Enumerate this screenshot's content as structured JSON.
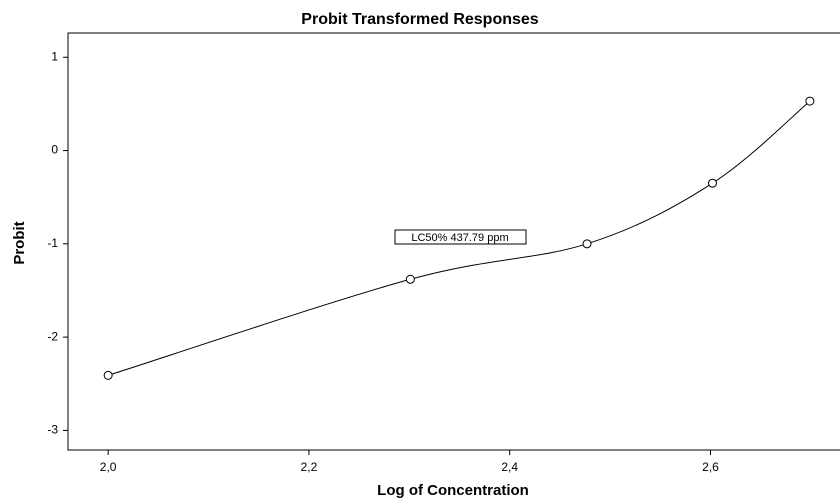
{
  "chart_data": {
    "type": "line",
    "title": "Probit Transformed Responses",
    "xlabel": "Log of Concentration",
    "ylabel": "Probit",
    "annotation": "LC50% 437.79 ppm",
    "x": [
      2.0,
      2.301,
      2.477,
      2.602,
      2.699
    ],
    "series": [
      {
        "color": "#000000",
        "values": [
          -2.41,
          -1.38,
          -1.0,
          -0.35,
          0.53
        ]
      }
    ],
    "xlim": [
      1.96,
      2.73
    ],
    "ylim": [
      -3.21,
      1.26
    ],
    "xticks": [
      {
        "value": 2.0,
        "label": "2,0"
      },
      {
        "value": 2.2,
        "label": "2,2"
      },
      {
        "value": 2.4,
        "label": "2,4"
      },
      {
        "value": 2.6,
        "label": "2,6"
      }
    ],
    "yticks": [
      1,
      0,
      -1,
      -2,
      -3
    ]
  }
}
